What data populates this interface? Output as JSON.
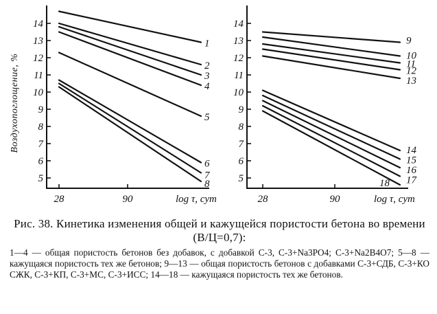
{
  "caption": {
    "title": "Рис. 38. Кинетика изменения общей и кажущейся пористости бетона во времени (В/Ц=0,7):",
    "text": "1—4 — общая пористость бетонов без добавок, с добавкой С-3, С-3+Na3PO4; С-3+Na2B4O7; 5—8 — кажущаяся пористость тех же бетонов; 9—13 — общая пористость бетонов с добавками С-3+СДБ, С-3+КО СЖК, С-3+КП, С-3+МС, С-3+ИСС; 14—18 — кажущаяся пористость тех же бетонов."
  },
  "chart_data": [
    {
      "type": "line",
      "ylabel": "Воздухопоглощение, %",
      "xlabel": "log τ, сут",
      "x_ticks": [
        "28",
        "90"
      ],
      "y_ticks": [
        "5",
        "6",
        "7",
        "8",
        "9",
        "10",
        "11",
        "12",
        "13",
        "14"
      ],
      "x": [
        "28",
        "end"
      ],
      "ylim": [
        4.4,
        14.8
      ],
      "series": [
        {
          "name": "1",
          "values": [
            14.7,
            12.9
          ]
        },
        {
          "name": "2",
          "values": [
            14.0,
            11.6
          ]
        },
        {
          "name": "3",
          "values": [
            13.8,
            11.0
          ]
        },
        {
          "name": "4",
          "values": [
            13.5,
            10.4
          ]
        },
        {
          "name": "5",
          "values": [
            12.3,
            8.6
          ]
        },
        {
          "name": "6",
          "values": [
            10.7,
            5.9
          ]
        },
        {
          "name": "7",
          "values": [
            10.5,
            5.3
          ]
        },
        {
          "name": "8",
          "values": [
            10.3,
            4.8
          ]
        }
      ]
    },
    {
      "type": "line",
      "xlabel": "log τ, сут",
      "x_ticks": [
        "28",
        "90"
      ],
      "y_ticks": [
        "5",
        "6",
        "7",
        "8",
        "9",
        "10",
        "11",
        "12",
        "13",
        "14"
      ],
      "x": [
        "28",
        "end"
      ],
      "ylim": [
        4.4,
        14.8
      ],
      "series": [
        {
          "name": "9",
          "values": [
            13.5,
            12.9
          ]
        },
        {
          "name": "10",
          "values": [
            13.2,
            12.1
          ]
        },
        {
          "name": "11",
          "values": [
            12.8,
            11.7
          ]
        },
        {
          "name": "12",
          "values": [
            12.5,
            11.3
          ]
        },
        {
          "name": "13",
          "values": [
            12.1,
            10.8
          ]
        },
        {
          "name": "14",
          "values": [
            10.1,
            6.6
          ]
        },
        {
          "name": "15",
          "values": [
            9.8,
            6.1
          ]
        },
        {
          "name": "16",
          "values": [
            9.5,
            5.6
          ]
        },
        {
          "name": "17",
          "values": [
            9.2,
            5.1
          ]
        },
        {
          "name": "18",
          "values": [
            8.9,
            4.6
          ]
        }
      ]
    }
  ]
}
